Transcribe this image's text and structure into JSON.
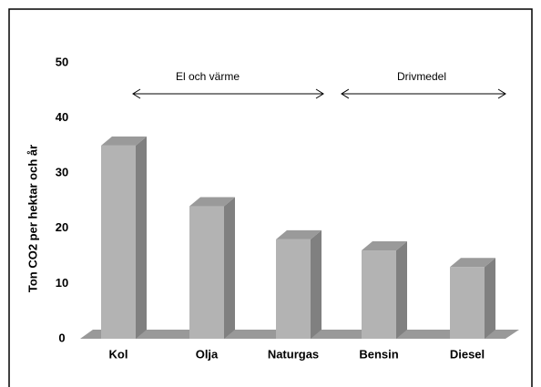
{
  "chart_data": {
    "type": "bar3d",
    "y_label": "Ton CO2 per hektar och år",
    "categories": [
      "Kol",
      "Olja",
      "Naturgas",
      "Bensin",
      "Diesel"
    ],
    "values": [
      35,
      24,
      18,
      16,
      13
    ],
    "color": "#b3b3b3",
    "ylim": [
      0,
      50
    ],
    "yticks": [
      0,
      10,
      20,
      30,
      40,
      50
    ],
    "annotations": [
      "El och värme",
      "Drivmedel"
    ]
  }
}
